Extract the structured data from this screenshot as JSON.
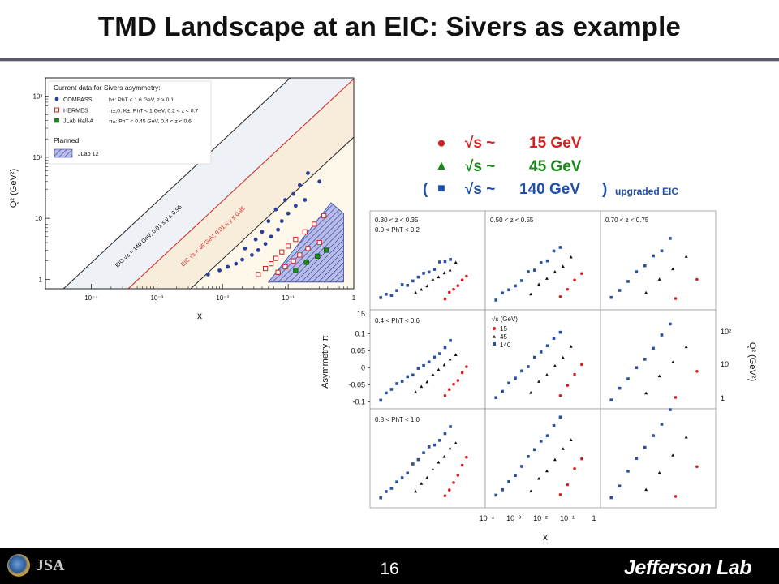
{
  "slide": {
    "title": "TMD Landscape at an EIC: Sivers as example",
    "page_number": "16",
    "footer_logo_left": "JSA",
    "footer_logo_right": "Jefferson Lab"
  },
  "energy_legend": {
    "rows": [
      {
        "open_paren": "",
        "symbol": "●",
        "label": "√s ~",
        "value": "15 GeV",
        "close_paren": "",
        "note": "",
        "color": "#d42020"
      },
      {
        "open_paren": "",
        "symbol": "▲",
        "label": "√s ~",
        "value": "45 GeV",
        "close_paren": "",
        "note": "",
        "color": "#1a8a1a"
      },
      {
        "open_paren": "(",
        "symbol": "■",
        "label": "√s ~",
        "value": "140 GeV",
        "close_paren": ")",
        "note": "upgraded EIC",
        "color": "#1f4fa8"
      }
    ]
  },
  "chart_data": [
    {
      "type": "scatter",
      "title": "",
      "xlabel": "x",
      "ylabel": "Q² (GeV²)",
      "xscale": "log",
      "yscale": "log",
      "xlim": [
        2e-05,
        1
      ],
      "ylim": [
        0.7,
        2000
      ],
      "x_ticks": [
        "10⁻⁴",
        "10⁻³",
        "10⁻²",
        "10⁻¹",
        "1"
      ],
      "y_ticks": [
        "1",
        "10",
        "10²",
        "10³"
      ],
      "legend_title": "Current data for Sivers asymmetry:",
      "legend_planned_title": "Planned:",
      "bands": [
        {
          "label": "EIC √s = 140 GeV, 0.01 ≤ y ≤ 0.95",
          "color": "#eef1f6",
          "line_color": "#222222"
        },
        {
          "label": "EIC √s = 45 GeV, 0.01 ≤ y ≤ 0.95",
          "color": "#f8ecdb",
          "line_color": "#d42020"
        },
        {
          "label": "",
          "color": "#fdf8ea",
          "line_color": "#222222"
        }
      ],
      "series": [
        {
          "name": "COMPASS",
          "kinematics": "h±: PhT < 1.6 GeV, z > 0.1",
          "marker": "circle",
          "color": "#2a3f9a",
          "points": [
            [
              0.006,
              1.2
            ],
            [
              0.009,
              1.4
            ],
            [
              0.012,
              1.6
            ],
            [
              0.016,
              1.8
            ],
            [
              0.02,
              2.1
            ],
            [
              0.022,
              3.2
            ],
            [
              0.028,
              2.5
            ],
            [
              0.032,
              4.5
            ],
            [
              0.035,
              3.0
            ],
            [
              0.04,
              6.0
            ],
            [
              0.045,
              3.8
            ],
            [
              0.05,
              9.0
            ],
            [
              0.055,
              5.0
            ],
            [
              0.065,
              14.0
            ],
            [
              0.07,
              6.5
            ],
            [
              0.08,
              9.0
            ],
            [
              0.09,
              20.0
            ],
            [
              0.1,
              12.0
            ],
            [
              0.12,
              25.0
            ],
            [
              0.13,
              16.0
            ],
            [
              0.15,
              35.0
            ],
            [
              0.18,
              20.0
            ],
            [
              0.2,
              55.0
            ],
            [
              0.3,
              40.0
            ]
          ]
        },
        {
          "name": "HERMES",
          "kinematics": "π±,0, K±: PhT < 1 GeV, 0.2 < z < 0.7",
          "marker": "open-square",
          "color": "#d42020",
          "points": [
            [
              0.035,
              1.2
            ],
            [
              0.045,
              1.5
            ],
            [
              0.055,
              1.8
            ],
            [
              0.065,
              2.2
            ],
            [
              0.07,
              1.3
            ],
            [
              0.08,
              2.8
            ],
            [
              0.09,
              1.6
            ],
            [
              0.1,
              3.5
            ],
            [
              0.12,
              2.0
            ],
            [
              0.13,
              4.5
            ],
            [
              0.15,
              2.5
            ],
            [
              0.18,
              6.0
            ],
            [
              0.2,
              3.2
            ],
            [
              0.25,
              8.0
            ],
            [
              0.3,
              4.0
            ],
            [
              0.35,
              11.0
            ]
          ]
        },
        {
          "name": "JLab Hall-A",
          "kinematics": "π±: PhT < 0.45 GeV, 0.4 < z < 0.6",
          "marker": "filled-square",
          "color": "#1a8a1a",
          "points": [
            [
              0.13,
              1.4
            ],
            [
              0.19,
              1.9
            ],
            [
              0.28,
              2.4
            ],
            [
              0.38,
              3.0
            ]
          ]
        }
      ],
      "planned": [
        {
          "name": "JLab 12",
          "color": "#8a94d8"
        }
      ]
    },
    {
      "type": "scatter",
      "title": "",
      "xlabel": "x",
      "ylabel": "Asymmetry π",
      "right_ylabel": "Q² (GeV²)",
      "xscale": "log",
      "xlim": [
        5e-05,
        1
      ],
      "x_ticks": [
        "10⁻⁴",
        "10⁻³",
        "10⁻²",
        "10⁻¹",
        "1"
      ],
      "y_ticks": [
        "15",
        "0.1",
        "0.05",
        "0",
        "-0.05",
        "-0.1"
      ],
      "right_y_ticks": [
        "10²",
        "10",
        "1"
      ],
      "grid_rows": [
        "0.0 < PhT < 0.2",
        "0.4 < PhT < 0.6",
        "0.8 < PhT < 1.0"
      ],
      "grid_cols": [
        "0.30 < z < 0.35",
        "0.50 < z < 0.55",
        "0.70 < z < 0.75"
      ],
      "legend_title": "√s (GeV)",
      "legend": [
        "15",
        "45",
        "140"
      ],
      "series_colors": {
        "15": "#d42020",
        "45": "#111111",
        "140": "#2a4fa0"
      }
    }
  ]
}
